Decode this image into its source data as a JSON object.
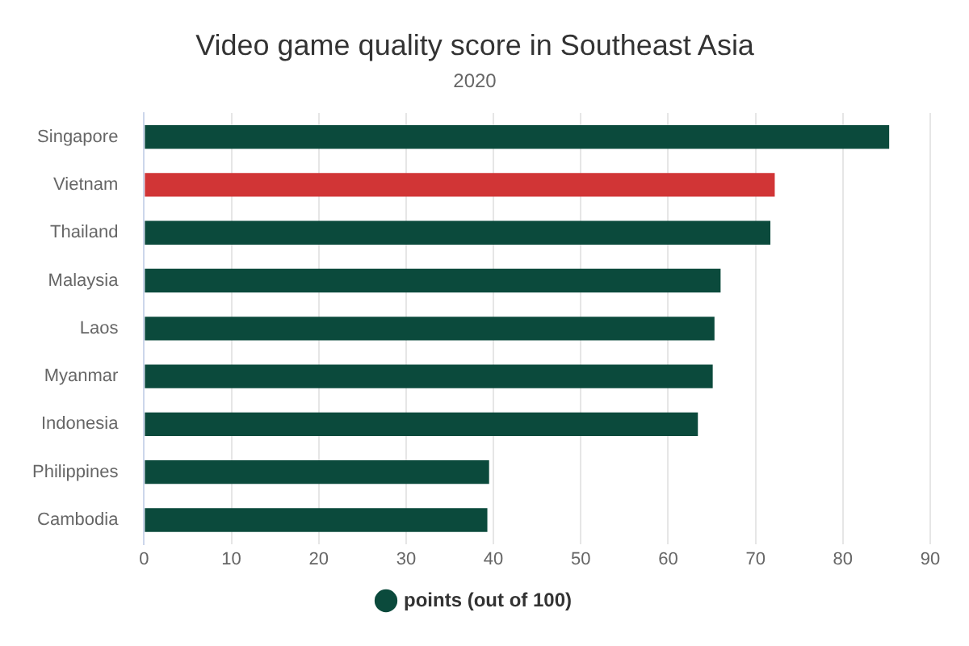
{
  "chart_data": {
    "type": "bar",
    "orientation": "horizontal",
    "title": "Video game quality score in Southeast Asia",
    "subtitle": "2020",
    "categories": [
      "Singapore",
      "Vietnam",
      "Thailand",
      "Malaysia",
      "Laos",
      "Myanmar",
      "Indonesia",
      "Philippines",
      "Cambodia"
    ],
    "series": [
      {
        "name": "points (out of 100)",
        "color": "#0b4a3c",
        "colors": [
          "#0b4a3c",
          "#d13536",
          "#0b4a3c",
          "#0b4a3c",
          "#0b4a3c",
          "#0b4a3c",
          "#0b4a3c",
          "#0b4a3c",
          "#0b4a3c"
        ],
        "values": [
          85.3,
          72.2,
          71.7,
          66.0,
          65.3,
          65.1,
          63.4,
          39.5,
          39.3
        ]
      }
    ],
    "xlim": [
      0,
      90
    ],
    "xticks": [
      0,
      10,
      20,
      30,
      40,
      50,
      60,
      70,
      80,
      90
    ],
    "grid": "x",
    "legend": "bottom"
  }
}
